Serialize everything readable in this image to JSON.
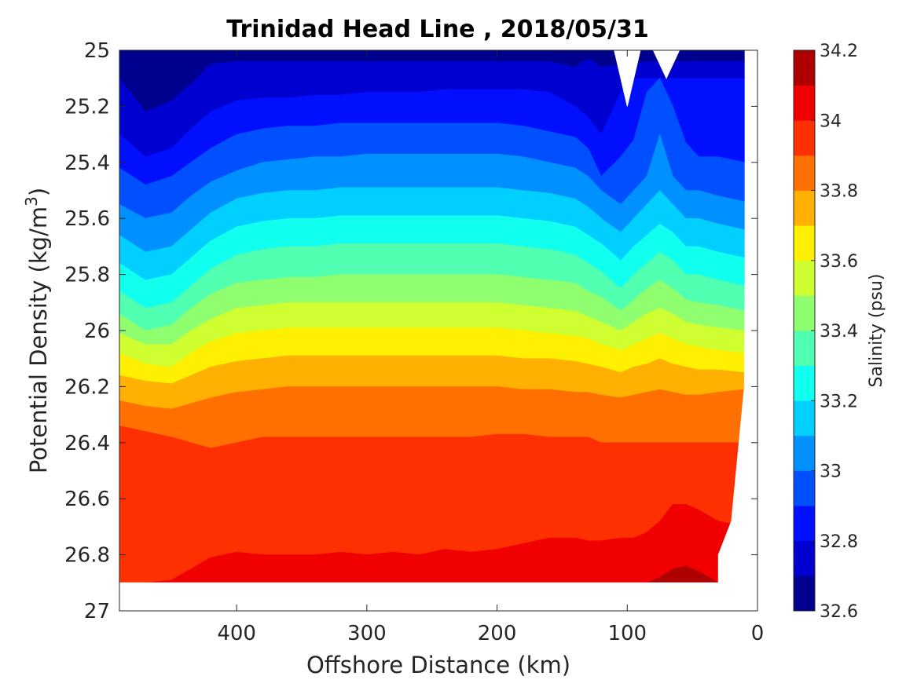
{
  "chart_data": {
    "type": "contourf",
    "title": "Trinidad Head Line , 2018/05/31",
    "xlabel": "Offshore Distance (km)",
    "ylabel_main": "Potential Density (kg/m",
    "ylabel_sup": "3",
    "ylabel_tail": ")",
    "xlim": [
      490,
      0
    ],
    "x_reversed": true,
    "ylim": [
      25,
      27
    ],
    "y_reversed": true,
    "xticks": [
      400,
      300,
      200,
      100,
      0
    ],
    "xtick_labels": [
      "400",
      "300",
      "200",
      "100",
      "0"
    ],
    "yticks": [
      25,
      25.2,
      25.4,
      25.6,
      25.8,
      26,
      26.2,
      26.4,
      26.6,
      26.8,
      27
    ],
    "ytick_labels": [
      "25",
      "25.2",
      "25.4",
      "25.6",
      "25.8",
      "26",
      "26.2",
      "26.4",
      "26.6",
      "26.8",
      "27"
    ],
    "grid": false,
    "data_extent": {
      "x_max": 490,
      "bottom_density": 26.9
    },
    "colorbar": {
      "label": "Salinity (psu)",
      "levels": [
        32.6,
        32.7,
        32.8,
        32.9,
        33.0,
        33.1,
        33.2,
        33.3,
        33.4,
        33.5,
        33.6,
        33.7,
        33.8,
        33.9,
        34.0,
        34.1,
        34.2
      ],
      "ticks": [
        32.6,
        32.8,
        33.0,
        33.2,
        33.4,
        33.6,
        33.8,
        34.0,
        34.2
      ],
      "tick_labels": [
        "32.6",
        "32.8",
        "33",
        "33.2",
        "33.4",
        "33.6",
        "33.8",
        "34",
        "34.2"
      ],
      "colors": [
        "#00008f",
        "#0000d0",
        "#0010ff",
        "#0050ff",
        "#0090ff",
        "#00cfff",
        "#10ffef",
        "#50ffaf",
        "#8fff70",
        "#cfff30",
        "#ffef00",
        "#ffb000",
        "#ff7000",
        "#ff3000",
        "#f00000",
        "#af0000"
      ]
    },
    "boundaries": [
      {
        "x": [
          490,
          470,
          450,
          435,
          420,
          400,
          380,
          360,
          340,
          320,
          300,
          280,
          260,
          240,
          220,
          200,
          180,
          160,
          140,
          130,
          120,
          105,
          95,
          85,
          75,
          65,
          55,
          45,
          30,
          10
        ],
        "y": [
          25.0,
          25.0,
          25.0,
          25.0,
          25.0,
          25.0,
          25.0,
          25.0,
          25.0,
          25.0,
          25.0,
          25.0,
          25.0,
          25.0,
          25.0,
          25.0,
          25.0,
          25.0,
          25.0,
          25.0,
          25.0,
          25.0,
          25.0,
          25.0,
          25.0,
          25.0,
          25.0,
          25.0,
          25.0,
          25.0
        ]
      },
      {
        "x": [
          490,
          470,
          450,
          435,
          420,
          400,
          380,
          360,
          340,
          320,
          300,
          280,
          260,
          240,
          220,
          200,
          180,
          160,
          140,
          130,
          120,
          105,
          95,
          85,
          75,
          65,
          55,
          45,
          30,
          10
        ],
        "y": [
          25.1,
          25.22,
          25.18,
          25.12,
          25.05,
          25.04,
          25.04,
          25.04,
          25.04,
          25.04,
          25.04,
          25.04,
          25.04,
          25.04,
          25.04,
          25.04,
          25.04,
          25.04,
          25.06,
          25.03,
          25.06,
          25.05,
          25.05,
          25.04,
          25.04,
          25.04,
          25.04,
          25.04,
          25.04,
          25.04
        ]
      },
      {
        "x": [
          490,
          470,
          450,
          435,
          420,
          400,
          380,
          360,
          340,
          320,
          300,
          280,
          260,
          240,
          220,
          200,
          180,
          160,
          140,
          130,
          120,
          105,
          95,
          85,
          75,
          65,
          55,
          45,
          30,
          10
        ],
        "y": [
          25.3,
          25.38,
          25.35,
          25.28,
          25.22,
          25.18,
          25.17,
          25.17,
          25.16,
          25.16,
          25.15,
          25.15,
          25.15,
          25.14,
          25.14,
          25.14,
          25.14,
          25.15,
          25.2,
          25.24,
          25.3,
          25.15,
          25.1,
          25.1,
          25.1,
          25.1,
          25.1,
          25.1,
          25.1,
          25.1
        ]
      },
      {
        "x": [
          490,
          470,
          450,
          435,
          420,
          400,
          380,
          360,
          340,
          320,
          300,
          280,
          260,
          240,
          220,
          200,
          180,
          160,
          140,
          130,
          120,
          105,
          95,
          85,
          75,
          65,
          55,
          45,
          30,
          10
        ],
        "y": [
          25.42,
          25.48,
          25.45,
          25.4,
          25.35,
          25.3,
          25.28,
          25.27,
          25.27,
          25.26,
          25.26,
          25.26,
          25.26,
          25.26,
          25.26,
          25.26,
          25.27,
          25.29,
          25.31,
          25.35,
          25.45,
          25.38,
          25.32,
          25.15,
          25.1,
          25.2,
          25.33,
          25.38,
          25.38,
          25.4
        ]
      },
      {
        "x": [
          490,
          470,
          450,
          435,
          420,
          400,
          380,
          360,
          340,
          320,
          300,
          280,
          260,
          240,
          220,
          200,
          180,
          160,
          140,
          130,
          120,
          105,
          95,
          85,
          75,
          65,
          55,
          45,
          30,
          10
        ],
        "y": [
          25.55,
          25.6,
          25.58,
          25.52,
          25.47,
          25.43,
          25.4,
          25.39,
          25.38,
          25.38,
          25.37,
          25.37,
          25.37,
          25.37,
          25.37,
          25.37,
          25.38,
          25.4,
          25.42,
          25.45,
          25.5,
          25.55,
          25.5,
          25.45,
          25.3,
          25.45,
          25.5,
          25.5,
          25.52,
          25.54
        ]
      },
      {
        "x": [
          490,
          470,
          450,
          435,
          420,
          400,
          380,
          360,
          340,
          320,
          300,
          280,
          260,
          240,
          220,
          200,
          180,
          160,
          140,
          130,
          120,
          105,
          95,
          85,
          75,
          65,
          55,
          45,
          30,
          10
        ],
        "y": [
          25.66,
          25.72,
          25.7,
          25.64,
          25.58,
          25.53,
          25.51,
          25.5,
          25.5,
          25.49,
          25.49,
          25.49,
          25.49,
          25.49,
          25.49,
          25.49,
          25.5,
          25.51,
          25.53,
          25.56,
          25.6,
          25.65,
          25.6,
          25.55,
          25.5,
          25.55,
          25.6,
          25.6,
          25.62,
          25.64
        ]
      },
      {
        "x": [
          490,
          470,
          450,
          435,
          420,
          400,
          380,
          360,
          340,
          320,
          300,
          280,
          260,
          240,
          220,
          200,
          180,
          160,
          140,
          130,
          120,
          105,
          95,
          85,
          75,
          65,
          55,
          45,
          30,
          10
        ],
        "y": [
          25.76,
          25.82,
          25.8,
          25.74,
          25.68,
          25.63,
          25.61,
          25.6,
          25.6,
          25.59,
          25.59,
          25.59,
          25.59,
          25.59,
          25.59,
          25.59,
          25.6,
          25.61,
          25.63,
          25.66,
          25.69,
          25.75,
          25.7,
          25.66,
          25.62,
          25.65,
          25.7,
          25.7,
          25.72,
          25.74
        ]
      },
      {
        "x": [
          490,
          470,
          450,
          435,
          420,
          400,
          380,
          360,
          340,
          320,
          300,
          280,
          260,
          240,
          220,
          200,
          180,
          160,
          140,
          130,
          120,
          105,
          95,
          85,
          75,
          65,
          55,
          45,
          30,
          10
        ],
        "y": [
          25.86,
          25.92,
          25.9,
          25.84,
          25.78,
          25.73,
          25.71,
          25.7,
          25.7,
          25.69,
          25.69,
          25.69,
          25.69,
          25.69,
          25.69,
          25.69,
          25.7,
          25.71,
          25.73,
          25.76,
          25.79,
          25.85,
          25.8,
          25.76,
          25.72,
          25.75,
          25.8,
          25.8,
          25.82,
          25.84
        ]
      },
      {
        "x": [
          490,
          470,
          450,
          435,
          420,
          400,
          380,
          360,
          340,
          320,
          300,
          280,
          260,
          240,
          220,
          200,
          180,
          160,
          140,
          130,
          120,
          105,
          95,
          85,
          75,
          65,
          55,
          45,
          30,
          10
        ],
        "y": [
          25.94,
          26.0,
          25.98,
          25.92,
          25.87,
          25.83,
          25.82,
          25.81,
          25.81,
          25.8,
          25.8,
          25.8,
          25.8,
          25.8,
          25.8,
          25.8,
          25.81,
          25.82,
          25.83,
          25.86,
          25.88,
          25.93,
          25.89,
          25.85,
          25.82,
          25.85,
          25.89,
          25.9,
          25.91,
          25.93
        ]
      },
      {
        "x": [
          490,
          470,
          450,
          435,
          420,
          400,
          380,
          360,
          340,
          320,
          300,
          280,
          260,
          240,
          220,
          200,
          180,
          160,
          140,
          130,
          120,
          105,
          95,
          85,
          75,
          65,
          55,
          45,
          30,
          10
        ],
        "y": [
          26.01,
          26.05,
          26.05,
          26.0,
          25.96,
          25.92,
          25.91,
          25.9,
          25.9,
          25.9,
          25.9,
          25.9,
          25.9,
          25.9,
          25.9,
          25.9,
          25.91,
          25.92,
          25.93,
          25.95,
          25.97,
          26.0,
          25.97,
          25.94,
          25.92,
          25.94,
          25.97,
          25.98,
          25.99,
          26.0
        ]
      },
      {
        "x": [
          490,
          470,
          450,
          435,
          420,
          400,
          380,
          360,
          340,
          320,
          300,
          280,
          260,
          240,
          220,
          200,
          180,
          160,
          140,
          130,
          120,
          105,
          95,
          85,
          75,
          65,
          55,
          45,
          30,
          10
        ],
        "y": [
          26.08,
          26.12,
          26.13,
          26.08,
          26.04,
          26.01,
          26.0,
          25.99,
          25.99,
          25.99,
          25.99,
          25.99,
          25.99,
          25.99,
          25.99,
          25.99,
          26.0,
          26.01,
          26.02,
          26.03,
          26.05,
          26.07,
          26.05,
          26.03,
          26.01,
          26.03,
          26.05,
          26.06,
          26.07,
          26.08
        ]
      },
      {
        "x": [
          490,
          470,
          450,
          435,
          420,
          400,
          380,
          360,
          340,
          320,
          300,
          280,
          260,
          240,
          220,
          200,
          180,
          160,
          140,
          130,
          120,
          105,
          95,
          85,
          75,
          65,
          55,
          45,
          30,
          10
        ],
        "y": [
          26.16,
          26.18,
          26.19,
          26.16,
          26.13,
          26.11,
          26.1,
          26.09,
          26.09,
          26.09,
          26.09,
          26.09,
          26.09,
          26.09,
          26.09,
          26.09,
          26.1,
          26.1,
          26.11,
          26.12,
          26.13,
          26.15,
          26.13,
          26.12,
          26.1,
          26.12,
          26.13,
          26.14,
          26.14,
          26.15
        ]
      },
      {
        "x": [
          490,
          470,
          450,
          435,
          420,
          400,
          380,
          360,
          340,
          320,
          300,
          280,
          260,
          240,
          220,
          200,
          180,
          160,
          140,
          130,
          120,
          105,
          95,
          85,
          75,
          65,
          55,
          45,
          30,
          10
        ],
        "y": [
          26.25,
          26.27,
          26.28,
          26.26,
          26.24,
          26.22,
          26.21,
          26.2,
          26.2,
          26.2,
          26.2,
          26.2,
          26.2,
          26.2,
          26.2,
          26.2,
          26.21,
          26.21,
          26.22,
          26.22,
          26.23,
          26.24,
          26.23,
          26.22,
          26.21,
          26.22,
          26.23,
          26.23,
          26.22,
          26.21
        ]
      },
      {
        "x": [
          490,
          470,
          450,
          435,
          420,
          400,
          380,
          360,
          340,
          320,
          300,
          280,
          260,
          240,
          220,
          200,
          180,
          160,
          140,
          130,
          120,
          105,
          95,
          85,
          75,
          65,
          55,
          45,
          30,
          10
        ],
        "y": [
          26.34,
          26.36,
          26.38,
          26.4,
          26.42,
          26.4,
          26.38,
          26.38,
          26.38,
          26.38,
          26.38,
          26.38,
          26.38,
          26.38,
          26.38,
          26.37,
          26.37,
          26.38,
          26.38,
          26.38,
          26.4,
          26.4,
          26.4,
          26.4,
          26.4,
          26.4,
          26.4,
          26.4,
          26.4,
          26.4
        ]
      },
      {
        "x": [
          490,
          470,
          450,
          435,
          420,
          400,
          380,
          360,
          340,
          320,
          300,
          280,
          260,
          240,
          220,
          200,
          180,
          160,
          140,
          130,
          120,
          105,
          95,
          85,
          75,
          65,
          55,
          45,
          30,
          10
        ],
        "y": [
          26.9,
          26.9,
          26.89,
          26.85,
          26.81,
          26.79,
          26.8,
          26.8,
          26.8,
          26.79,
          26.8,
          26.79,
          26.8,
          26.78,
          26.79,
          26.78,
          26.76,
          26.74,
          26.74,
          26.75,
          26.75,
          26.74,
          26.74,
          26.72,
          26.68,
          26.62,
          26.62,
          26.64,
          26.68,
          26.7
        ]
      },
      {
        "x": [
          490,
          470,
          450,
          435,
          420,
          400,
          380,
          360,
          340,
          320,
          300,
          280,
          260,
          240,
          220,
          200,
          180,
          160,
          140,
          130,
          120,
          105,
          95,
          85,
          75,
          65,
          55,
          45,
          30,
          10
        ],
        "y": [
          26.9,
          26.9,
          26.9,
          26.9,
          26.9,
          26.9,
          26.9,
          26.9,
          26.9,
          26.9,
          26.9,
          26.9,
          26.9,
          26.9,
          26.9,
          26.9,
          26.9,
          26.9,
          26.9,
          26.9,
          26.9,
          26.9,
          26.9,
          26.9,
          26.88,
          26.85,
          26.84,
          26.86,
          26.9,
          26.9
        ]
      },
      {
        "x": [
          490,
          470,
          450,
          435,
          420,
          400,
          380,
          360,
          340,
          320,
          300,
          280,
          260,
          240,
          220,
          200,
          180,
          160,
          140,
          130,
          120,
          105,
          95,
          85,
          75,
          65,
          55,
          45,
          30,
          10
        ],
        "y": [
          26.9,
          26.9,
          26.9,
          26.9,
          26.9,
          26.9,
          26.9,
          26.9,
          26.9,
          26.9,
          26.9,
          26.9,
          26.9,
          26.9,
          26.9,
          26.9,
          26.9,
          26.9,
          26.9,
          26.9,
          26.9,
          26.9,
          26.9,
          26.9,
          26.9,
          26.9,
          26.9,
          26.9,
          26.9,
          26.9
        ]
      }
    ],
    "no_data_regions": [
      {
        "x": [
          110,
          100,
          90
        ],
        "y": [
          25.0,
          25.2,
          25.0
        ]
      },
      {
        "x": [
          80,
          70,
          60
        ],
        "y": [
          25.0,
          25.1,
          25.0
        ]
      },
      {
        "x": [
          8,
          0,
          0,
          20,
          20,
          30,
          30,
          20,
          10
        ],
        "y": [
          25.0,
          25.0,
          27.0,
          27.0,
          26.9,
          26.9,
          26.8,
          26.68,
          26.2
        ]
      },
      {
        "x": [
          490,
          0,
          0,
          490
        ],
        "y": [
          26.9,
          26.9,
          27.0,
          27.0
        ]
      }
    ]
  }
}
